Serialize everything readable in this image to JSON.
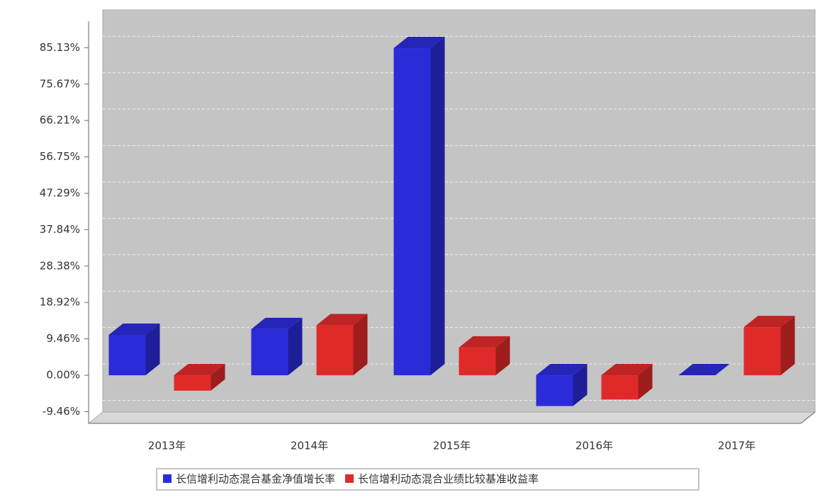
{
  "chart_data": {
    "type": "bar3d",
    "categories": [
      "2013年",
      "2014年",
      "2015年",
      "2016年",
      "2017年"
    ],
    "series": [
      {
        "name": "长信增利动态混合基金净值增长率",
        "color": "#2b2bd9",
        "values": [
          10.5,
          12.0,
          85.0,
          -8.0,
          0.0
        ]
      },
      {
        "name": "长信增利动态混合业绩比较基准收益率",
        "color": "#e02a2a",
        "values": [
          -4.0,
          13.0,
          7.2,
          -6.3,
          12.5
        ]
      }
    ],
    "ylim": [
      -12.5,
      92
    ],
    "yticks": [
      {
        "value": -9.46,
        "label": "-9.46%"
      },
      {
        "value": 0,
        "label": "0.00%"
      },
      {
        "value": 9.46,
        "label": "9.46%"
      },
      {
        "value": 18.92,
        "label": "18.92%"
      },
      {
        "value": 28.38,
        "label": "28.38%"
      },
      {
        "value": 37.84,
        "label": "37.84%"
      },
      {
        "value": 47.29,
        "label": "47.29%"
      },
      {
        "value": 56.75,
        "label": "56.75%"
      },
      {
        "value": 66.21,
        "label": "66.21%"
      },
      {
        "value": 75.67,
        "label": "75.67%"
      },
      {
        "value": 85.13,
        "label": "85.13%"
      }
    ],
    "grid": true
  }
}
